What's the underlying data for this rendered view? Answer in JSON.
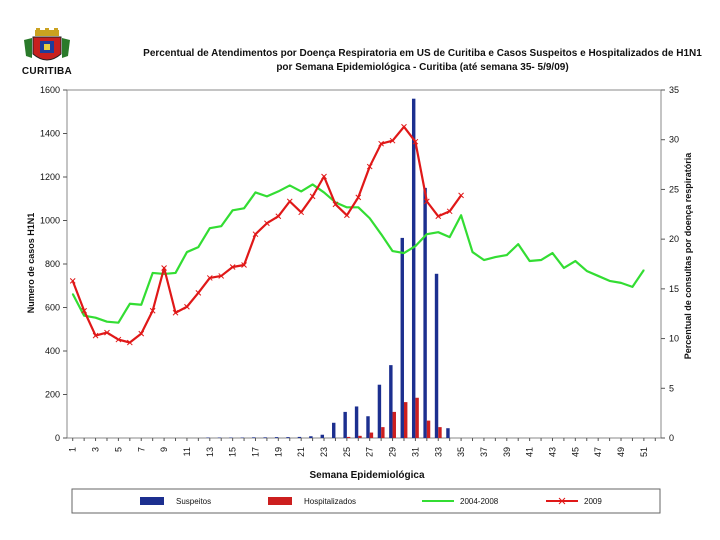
{
  "brand": {
    "name": "CURITIBA"
  },
  "chart_data": {
    "type": "bar",
    "title": "Percentual de Atendimentos por Doença Respiratoria em US de Curitiba e Casos Suspeitos e Hospitalizados de H1N1 por Semana Epidemiológica - Curitiba (até semana 35- 5/9/09)",
    "xlabel": "Semana Epidemiológica",
    "ylabel": "Numero de casos H1N1",
    "y2label": "Percentual de consultas por doença respiratória",
    "ylim": [
      0,
      1600
    ],
    "y2lim": [
      0,
      35
    ],
    "yticks": [
      0,
      200,
      400,
      600,
      800,
      1000,
      1200,
      1400,
      1600
    ],
    "y2ticks": [
      0,
      5,
      10,
      15,
      20,
      25,
      30,
      35
    ],
    "grid": false,
    "legend_position": "bottom",
    "categories": [
      "1",
      "2",
      "3",
      "4",
      "5",
      "6",
      "7",
      "8",
      "9",
      "10",
      "11",
      "12",
      "13",
      "14",
      "15",
      "16",
      "17",
      "18",
      "19",
      "20",
      "21",
      "22",
      "23",
      "24",
      "25",
      "26",
      "27",
      "28",
      "29",
      "30",
      "31",
      "32",
      "33",
      "34",
      "35",
      "36",
      "37",
      "38",
      "39",
      "40",
      "41",
      "42",
      "43",
      "44",
      "45",
      "46",
      "47",
      "48",
      "49",
      "50",
      "51",
      "52"
    ],
    "series": [
      {
        "name": "Suspeitos",
        "kind": "bar",
        "axis": "left",
        "color": "#1c2f8f",
        "values": [
          0,
          0,
          0,
          0,
          0,
          0,
          0,
          0,
          0,
          0,
          0,
          0,
          2,
          2,
          2,
          2,
          3,
          3,
          4,
          4,
          5,
          8,
          15,
          70,
          120,
          145,
          100,
          245,
          335,
          920,
          1560,
          1150,
          755,
          45,
          null,
          null,
          null,
          null,
          null,
          null,
          null,
          null,
          null,
          null,
          null,
          null,
          null,
          null,
          null,
          null,
          null,
          null
        ]
      },
      {
        "name": "Hospitalizados",
        "kind": "bar",
        "axis": "left",
        "color": "#cc1f1f",
        "values": [
          0,
          0,
          0,
          0,
          0,
          0,
          0,
          0,
          0,
          0,
          0,
          0,
          0,
          0,
          0,
          0,
          0,
          0,
          0,
          0,
          0,
          0,
          0,
          0,
          5,
          10,
          25,
          50,
          120,
          165,
          185,
          80,
          50,
          0,
          null,
          null,
          null,
          null,
          null,
          null,
          null,
          null,
          null,
          null,
          null,
          null,
          null,
          null,
          null,
          null,
          null,
          null
        ]
      },
      {
        "name": "2004-2008",
        "kind": "line",
        "axis": "right",
        "color": "#33dd33",
        "values": [
          14.5,
          12.3,
          12.1,
          11.7,
          11.6,
          13.5,
          13.4,
          16.6,
          16.5,
          16.6,
          18.7,
          19.2,
          21.1,
          21.3,
          22.9,
          23.1,
          24.7,
          24.3,
          24.8,
          25.4,
          24.8,
          25.5,
          24.7,
          23.7,
          23.2,
          23.2,
          22.1,
          20.5,
          18.8,
          18.6,
          19.3,
          20.5,
          20.7,
          20.2,
          22.4,
          18.7,
          17.9,
          18.2,
          18.4,
          19.5,
          17.8,
          17.9,
          18.6,
          17.1,
          17.8,
          16.8,
          16.3,
          15.8,
          15.6,
          15.2,
          16.9,
          null
        ]
      },
      {
        "name": "2009",
        "kind": "line",
        "axis": "right",
        "color": "#e01818",
        "values": [
          15.8,
          12.8,
          10.3,
          10.6,
          9.9,
          9.6,
          10.5,
          12.8,
          17.1,
          12.6,
          13.2,
          14.6,
          16.1,
          16.3,
          17.2,
          17.4,
          20.5,
          21.6,
          22.3,
          23.8,
          22.7,
          24.3,
          26.3,
          23.5,
          22.4,
          24.2,
          27.3,
          29.6,
          29.9,
          31.3,
          29.8,
          23.8,
          22.3,
          22.8,
          24.4,
          null,
          null,
          null,
          null,
          null,
          null,
          null,
          null,
          null,
          null,
          null,
          null,
          null,
          null,
          null,
          null,
          null
        ]
      }
    ]
  }
}
